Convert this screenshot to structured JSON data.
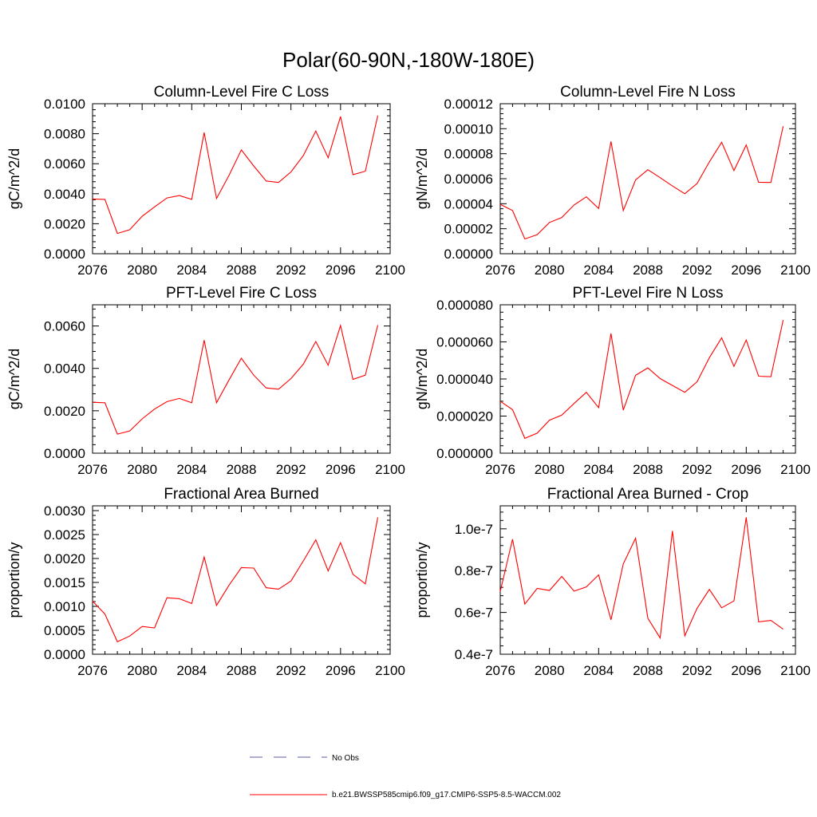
{
  "title": "Polar(60-90N,-180W-180E)",
  "chart_data": [
    {
      "type": "line",
      "title": "Column-Level Fire C Loss",
      "ylabel": "gC/m^2/d",
      "xlim": [
        2076,
        2100
      ],
      "ylim": [
        0.0,
        0.01
      ],
      "xticks": [
        "2076",
        "2080",
        "2084",
        "2088",
        "2092",
        "2096",
        "2100"
      ],
      "yticks": [
        "0.0000",
        "0.0020",
        "0.0040",
        "0.0060",
        "0.0080",
        "0.0100"
      ],
      "x": [
        2076,
        2077,
        2078,
        2079,
        2080,
        2081,
        2082,
        2083,
        2084,
        2085,
        2086,
        2087,
        2088,
        2089,
        2090,
        2091,
        2092,
        2093,
        2094,
        2095,
        2096,
        2097,
        2098,
        2099
      ],
      "series": [
        {
          "name": "b.e21.BWSSP585cmip6.f09_g17.CMIP6-SSP5-8.5-WACCM.002",
          "values": [
            0.00365,
            0.00362,
            0.00135,
            0.0016,
            0.0025,
            0.00312,
            0.00372,
            0.00388,
            0.00362,
            0.00808,
            0.00368,
            0.00522,
            0.00692,
            0.00585,
            0.00485,
            0.00475,
            0.00545,
            0.00655,
            0.00818,
            0.0064,
            0.00915,
            0.00527,
            0.0055,
            0.00922
          ]
        }
      ]
    },
    {
      "type": "line",
      "title": "Column-Level Fire N Loss",
      "ylabel": "gN/m^2/d",
      "xlim": [
        2076,
        2100
      ],
      "ylim": [
        0.0,
        0.00012
      ],
      "xticks": [
        "2076",
        "2080",
        "2084",
        "2088",
        "2092",
        "2096",
        "2100"
      ],
      "yticks": [
        "0.00000",
        "0.00002",
        "0.00004",
        "0.00006",
        "0.00008",
        "0.00010",
        "0.00012"
      ],
      "x": [
        2076,
        2077,
        2078,
        2079,
        2080,
        2081,
        2082,
        2083,
        2084,
        2085,
        2086,
        2087,
        2088,
        2089,
        2090,
        2091,
        2092,
        2093,
        2094,
        2095,
        2096,
        2097,
        2098,
        2099
      ],
      "series": [
        {
          "name": "b.e21.BWSSP585cmip6.f09_g17.CMIP6-SSP5-8.5-WACCM.002",
          "values": [
            3.95e-05,
            3.45e-05,
            1.18e-05,
            1.52e-05,
            2.5e-05,
            2.9e-05,
            3.9e-05,
            4.55e-05,
            3.62e-05,
            8.98e-05,
            3.45e-05,
            5.9e-05,
            6.72e-05,
            6.08e-05,
            5.42e-05,
            4.8e-05,
            5.62e-05,
            7.35e-05,
            8.92e-05,
            6.65e-05,
            8.7e-05,
            5.72e-05,
            5.7e-05,
            0.000102
          ]
        }
      ]
    },
    {
      "type": "line",
      "title": "PFT-Level Fire C Loss",
      "ylabel": "gC/m^2/d",
      "xlim": [
        2076,
        2100
      ],
      "ylim": [
        0.0,
        0.007
      ],
      "xticks": [
        "2076",
        "2080",
        "2084",
        "2088",
        "2092",
        "2096",
        "2100"
      ],
      "yticks": [
        "0.0000",
        "0.0020",
        "0.0040",
        "0.0060"
      ],
      "x": [
        2076,
        2077,
        2078,
        2079,
        2080,
        2081,
        2082,
        2083,
        2084,
        2085,
        2086,
        2087,
        2088,
        2089,
        2090,
        2091,
        2092,
        2093,
        2094,
        2095,
        2096,
        2097,
        2098,
        2099
      ],
      "series": [
        {
          "name": "b.e21.BWSSP585cmip6.f09_g17.CMIP6-SSP5-8.5-WACCM.002",
          "values": [
            0.0024,
            0.00238,
            0.0009,
            0.00105,
            0.00162,
            0.00208,
            0.00243,
            0.00258,
            0.00238,
            0.00533,
            0.00238,
            0.00345,
            0.00448,
            0.00368,
            0.00308,
            0.00302,
            0.00352,
            0.0042,
            0.00527,
            0.00415,
            0.00602,
            0.00348,
            0.00368,
            0.00604
          ]
        }
      ]
    },
    {
      "type": "line",
      "title": "PFT-Level Fire N Loss",
      "ylabel": "gN/m^2/d",
      "xlim": [
        2076,
        2100
      ],
      "ylim": [
        0.0,
        8e-05
      ],
      "xticks": [
        "2076",
        "2080",
        "2084",
        "2088",
        "2092",
        "2096",
        "2100"
      ],
      "yticks": [
        "0.000000",
        "0.000020",
        "0.000040",
        "0.000060",
        "0.000080"
      ],
      "x": [
        2076,
        2077,
        2078,
        2079,
        2080,
        2081,
        2082,
        2083,
        2084,
        2085,
        2086,
        2087,
        2088,
        2089,
        2090,
        2091,
        2092,
        2093,
        2094,
        2095,
        2096,
        2097,
        2098,
        2099
      ],
      "series": [
        {
          "name": "b.e21.BWSSP585cmip6.f09_g17.CMIP6-SSP5-8.5-WACCM.002",
          "values": [
            2.8e-05,
            2.35e-05,
            8e-06,
            1.08e-05,
            1.78e-05,
            2.05e-05,
            2.68e-05,
            3.28e-05,
            2.45e-05,
            6.45e-05,
            2.32e-05,
            4.2e-05,
            4.6e-05,
            4.02e-05,
            3.65e-05,
            3.28e-05,
            3.85e-05,
            5.15e-05,
            6.22e-05,
            4.68e-05,
            6.1e-05,
            4.15e-05,
            4.12e-05,
            7.18e-05
          ]
        }
      ]
    },
    {
      "type": "line",
      "title": "Fractional Area Burned",
      "ylabel": "proportion/y",
      "xlim": [
        2076,
        2100
      ],
      "ylim": [
        0.0,
        0.0031
      ],
      "xticks": [
        "2076",
        "2080",
        "2084",
        "2088",
        "2092",
        "2096",
        "2100"
      ],
      "yticks": [
        "0.0000",
        "0.0005",
        "0.0010",
        "0.0015",
        "0.0020",
        "0.0025",
        "0.0030"
      ],
      "x": [
        2076,
        2077,
        2078,
        2079,
        2080,
        2081,
        2082,
        2083,
        2084,
        2085,
        2086,
        2087,
        2088,
        2089,
        2090,
        2091,
        2092,
        2093,
        2094,
        2095,
        2096,
        2097,
        2098,
        2099
      ],
      "series": [
        {
          "name": "b.e21.BWSSP585cmip6.f09_g17.CMIP6-SSP5-8.5-WACCM.002",
          "values": [
            0.00111,
            0.00084,
            0.00026,
            0.00038,
            0.00058,
            0.00055,
            0.00118,
            0.00116,
            0.00106,
            0.00203,
            0.00102,
            0.00144,
            0.00181,
            0.0018,
            0.00139,
            0.00136,
            0.00153,
            0.00195,
            0.00239,
            0.00174,
            0.00233,
            0.00167,
            0.00147,
            0.00286
          ]
        }
      ]
    },
    {
      "type": "line",
      "title": "Fractional Area Burned - Crop",
      "ylabel": "proportion/y",
      "xlim": [
        2076,
        2100
      ],
      "ylim": [
        4e-08,
        1.11e-07
      ],
      "xticks": [
        "2076",
        "2080",
        "2084",
        "2088",
        "2092",
        "2096",
        "2100"
      ],
      "yticks": [
        "0.4e-7",
        "0.6e-7",
        "0.8e-7",
        "1.0e-7"
      ],
      "x": [
        2076,
        2077,
        2078,
        2079,
        2080,
        2081,
        2082,
        2083,
        2084,
        2085,
        2086,
        2087,
        2088,
        2089,
        2090,
        2091,
        2092,
        2093,
        2094,
        2095,
        2096,
        2097,
        2098,
        2099
      ],
      "series": [
        {
          "name": "b.e21.BWSSP585cmip6.f09_g17.CMIP6-SSP5-8.5-WACCM.002",
          "values": [
            7e-08,
            9.5e-08,
            6.4e-08,
            7.15e-08,
            7.05e-08,
            7.72e-08,
            7.02e-08,
            7.22e-08,
            7.8e-08,
            5.65e-08,
            8.32e-08,
            9.55e-08,
            5.72e-08,
            4.78e-08,
            9.9e-08,
            4.88e-08,
            6.2e-08,
            7.1e-08,
            6.22e-08,
            6.55e-08,
            1.055e-07,
            5.55e-08,
            5.62e-08,
            5.2e-08
          ]
        }
      ]
    }
  ],
  "legend": {
    "items": [
      {
        "label": "No Obs",
        "style": "dashed",
        "color": "#5b5b9b"
      },
      {
        "label": "b.e21.BWSSP585cmip6.f09_g17.CMIP6-SSP5-8.5-WACCM.002",
        "style": "solid",
        "color": "#ff0000"
      }
    ]
  },
  "colors": {
    "series": "#ff0000",
    "axis": "#000000",
    "obs": "#5b5b9b"
  }
}
